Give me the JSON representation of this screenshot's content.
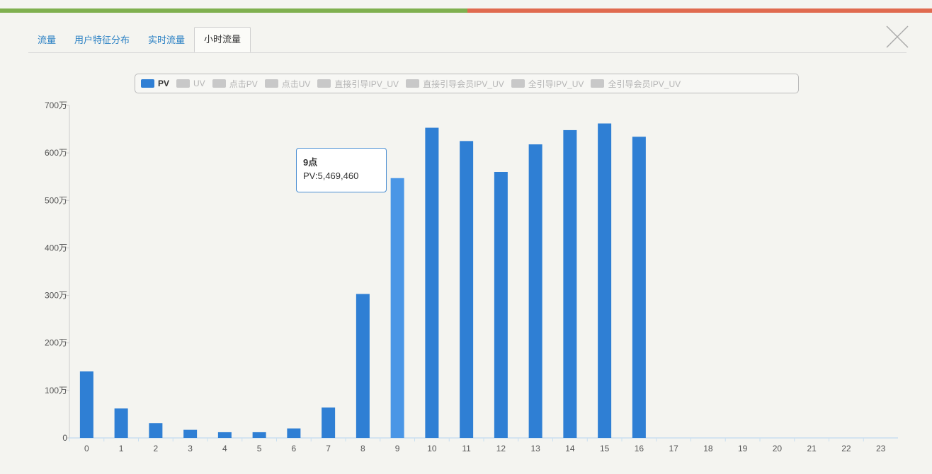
{
  "tabs": [
    {
      "label": "流量",
      "active": false
    },
    {
      "label": "用户特征分布",
      "active": false
    },
    {
      "label": "实时流量",
      "active": false
    },
    {
      "label": "小时流量",
      "active": true
    }
  ],
  "legend": [
    {
      "label": "PV",
      "active": true
    },
    {
      "label": "UV",
      "active": false
    },
    {
      "label": "点击PV",
      "active": false
    },
    {
      "label": "点击UV",
      "active": false
    },
    {
      "label": "直接引导IPV_UV",
      "active": false
    },
    {
      "label": "直接引导会员IPV_UV",
      "active": false
    },
    {
      "label": "全引导IPV_UV",
      "active": false
    },
    {
      "label": "全引导会员IPV_UV",
      "active": false
    }
  ],
  "tooltip": {
    "title": "9点",
    "text": "PV:5,469,460"
  },
  "colors": {
    "bar": "#2f7fd4",
    "bar_highlight": "#4a96e6",
    "inactive": "#c8c8c8",
    "tab_text": "#2a80c4"
  },
  "icons": {
    "close": "close-icon"
  },
  "chart_data": {
    "type": "bar",
    "categories": [
      "0",
      "1",
      "2",
      "3",
      "4",
      "5",
      "6",
      "7",
      "8",
      "9",
      "10",
      "11",
      "12",
      "13",
      "14",
      "15",
      "16",
      "17",
      "18",
      "19",
      "20",
      "21",
      "22",
      "23"
    ],
    "series": [
      {
        "name": "PV",
        "values": [
          1400000,
          620000,
          310000,
          170000,
          120000,
          120000,
          200000,
          640000,
          3030000,
          5469460,
          6530000,
          6250000,
          5600000,
          6180000,
          6480000,
          6620000,
          6340000,
          null,
          null,
          null,
          null,
          null,
          null,
          null
        ]
      }
    ],
    "highlight_category": "9",
    "y_ticks": [
      "0",
      "100万",
      "200万",
      "300万",
      "400万",
      "500万",
      "600万",
      "700万"
    ],
    "ylim": [
      0,
      7000000
    ],
    "legend": "top-center",
    "grid": false
  }
}
